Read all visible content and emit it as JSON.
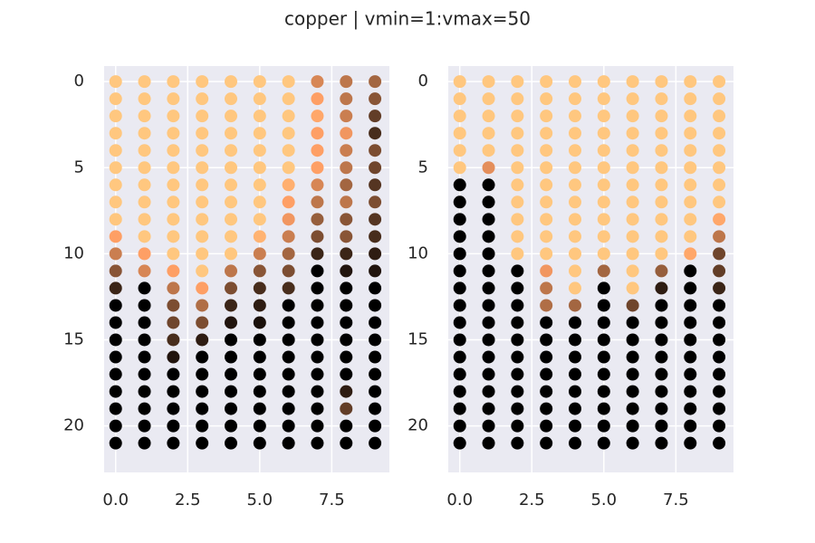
{
  "title": "copper | vmin=1:vmax=50",
  "chart_data": [
    {
      "type": "color-scatter",
      "colormap": "copper",
      "vmin": 1,
      "vmax": 50,
      "grid": true,
      "x": [
        0,
        1,
        2,
        3,
        4,
        5,
        6,
        7,
        8,
        9
      ],
      "y": [
        0,
        1,
        2,
        3,
        4,
        5,
        6,
        7,
        8,
        9,
        10,
        11,
        12,
        13,
        14,
        15,
        16,
        17,
        18,
        19,
        20,
        21
      ],
      "xlim": [
        -0.4,
        9.5
      ],
      "ylim": [
        22.7,
        -0.9
      ],
      "xticks": [
        {
          "value": 0,
          "label": "0.0"
        },
        2.5,
        {
          "value": 5,
          "label": "5.0"
        },
        7.5
      ],
      "yticks": [
        0,
        5,
        10,
        15,
        20
      ],
      "values": [
        [
          50,
          50,
          50,
          50,
          50,
          50,
          50,
          50,
          50,
          40,
          32,
          22,
          10,
          1,
          1,
          1,
          1,
          1,
          1,
          1,
          1,
          1
        ],
        [
          50,
          50,
          50,
          50,
          50,
          50,
          50,
          50,
          50,
          50,
          40,
          34,
          1,
          1,
          1,
          1,
          1,
          1,
          1,
          1,
          1,
          1
        ],
        [
          50,
          50,
          50,
          50,
          50,
          50,
          50,
          50,
          50,
          50,
          50,
          40,
          30,
          20,
          18,
          12,
          6,
          1,
          1,
          1,
          1,
          1
        ],
        [
          50,
          50,
          50,
          50,
          50,
          50,
          50,
          50,
          50,
          50,
          50,
          50,
          40,
          28,
          20,
          8,
          1,
          1,
          1,
          1,
          1,
          1
        ],
        [
          50,
          50,
          50,
          50,
          50,
          50,
          50,
          50,
          50,
          50,
          50,
          30,
          20,
          10,
          6,
          1,
          1,
          1,
          1,
          1,
          1,
          1
        ],
        [
          50,
          50,
          50,
          50,
          50,
          50,
          50,
          50,
          50,
          45,
          32,
          22,
          12,
          8,
          5,
          1,
          1,
          1,
          1,
          1,
          1,
          1
        ],
        [
          50,
          50,
          50,
          50,
          50,
          50,
          44,
          40,
          38,
          32,
          26,
          20,
          12,
          1,
          1,
          1,
          1,
          1,
          1,
          1,
          1,
          1
        ],
        [
          34,
          40,
          42,
          40,
          40,
          40,
          34,
          30,
          24,
          20,
          10,
          1,
          1,
          1,
          1,
          1,
          1,
          1,
          1,
          1,
          1,
          1
        ],
        [
          30,
          30,
          32,
          38,
          32,
          30,
          26,
          30,
          22,
          22,
          10,
          6,
          1,
          1,
          1,
          1,
          1,
          1,
          8,
          16,
          1,
          1
        ],
        [
          26,
          22,
          16,
          12,
          20,
          18,
          14,
          20,
          14,
          12,
          8,
          6,
          1,
          1,
          1,
          1,
          1,
          1,
          1,
          1,
          1,
          1
        ]
      ]
    },
    {
      "type": "color-scatter",
      "colormap": "copper",
      "vmin": 1,
      "vmax": 50,
      "grid": true,
      "x": [
        0,
        1,
        2,
        3,
        4,
        5,
        6,
        7,
        8,
        9
      ],
      "y": [
        0,
        1,
        2,
        3,
        4,
        5,
        6,
        7,
        8,
        9,
        10,
        11,
        12,
        13,
        14,
        15,
        16,
        17,
        18,
        19,
        20,
        21
      ],
      "xlim": [
        -0.4,
        9.5
      ],
      "ylim": [
        22.7,
        -0.9
      ],
      "xticks": [
        {
          "value": 0,
          "label": "0.0"
        },
        2.5,
        {
          "value": 5,
          "label": "5.0"
        },
        7.5
      ],
      "yticks": [
        0,
        5,
        10,
        15,
        20
      ],
      "values": [
        [
          50,
          50,
          50,
          50,
          50,
          50,
          1,
          1,
          1,
          1,
          1,
          1,
          1,
          1,
          1,
          1,
          1,
          1,
          1,
          1,
          1,
          1
        ],
        [
          50,
          50,
          50,
          50,
          50,
          36,
          1,
          1,
          1,
          1,
          1,
          1,
          1,
          1,
          1,
          1,
          1,
          1,
          1,
          1,
          1,
          1
        ],
        [
          50,
          50,
          50,
          50,
          50,
          50,
          50,
          50,
          50,
          50,
          50,
          1,
          1,
          1,
          1,
          1,
          1,
          1,
          1,
          1,
          1,
          1
        ],
        [
          50,
          50,
          50,
          50,
          50,
          50,
          50,
          50,
          50,
          50,
          50,
          38,
          30,
          28,
          1,
          1,
          1,
          1,
          1,
          1,
          1,
          1
        ],
        [
          50,
          50,
          50,
          50,
          50,
          50,
          50,
          50,
          50,
          50,
          50,
          50,
          50,
          26,
          1,
          1,
          1,
          1,
          1,
          1,
          1,
          1
        ],
        [
          50,
          50,
          50,
          50,
          50,
          50,
          50,
          50,
          50,
          50,
          50,
          26,
          1,
          1,
          1,
          1,
          1,
          1,
          1,
          1,
          1,
          1
        ],
        [
          50,
          50,
          50,
          50,
          50,
          50,
          50,
          50,
          50,
          50,
          50,
          50,
          50,
          18,
          1,
          1,
          1,
          1,
          1,
          1,
          1,
          1
        ],
        [
          50,
          50,
          50,
          50,
          50,
          50,
          50,
          50,
          50,
          50,
          50,
          24,
          8,
          1,
          1,
          1,
          1,
          1,
          1,
          1,
          1,
          1
        ],
        [
          50,
          50,
          50,
          50,
          50,
          50,
          50,
          50,
          50,
          50,
          42,
          1,
          1,
          1,
          1,
          1,
          1,
          1,
          1,
          1,
          1,
          1
        ],
        [
          50,
          50,
          50,
          50,
          50,
          50,
          50,
          50,
          42,
          30,
          18,
          16,
          10,
          1,
          1,
          1,
          1,
          1,
          1,
          1,
          1,
          1
        ]
      ]
    }
  ]
}
